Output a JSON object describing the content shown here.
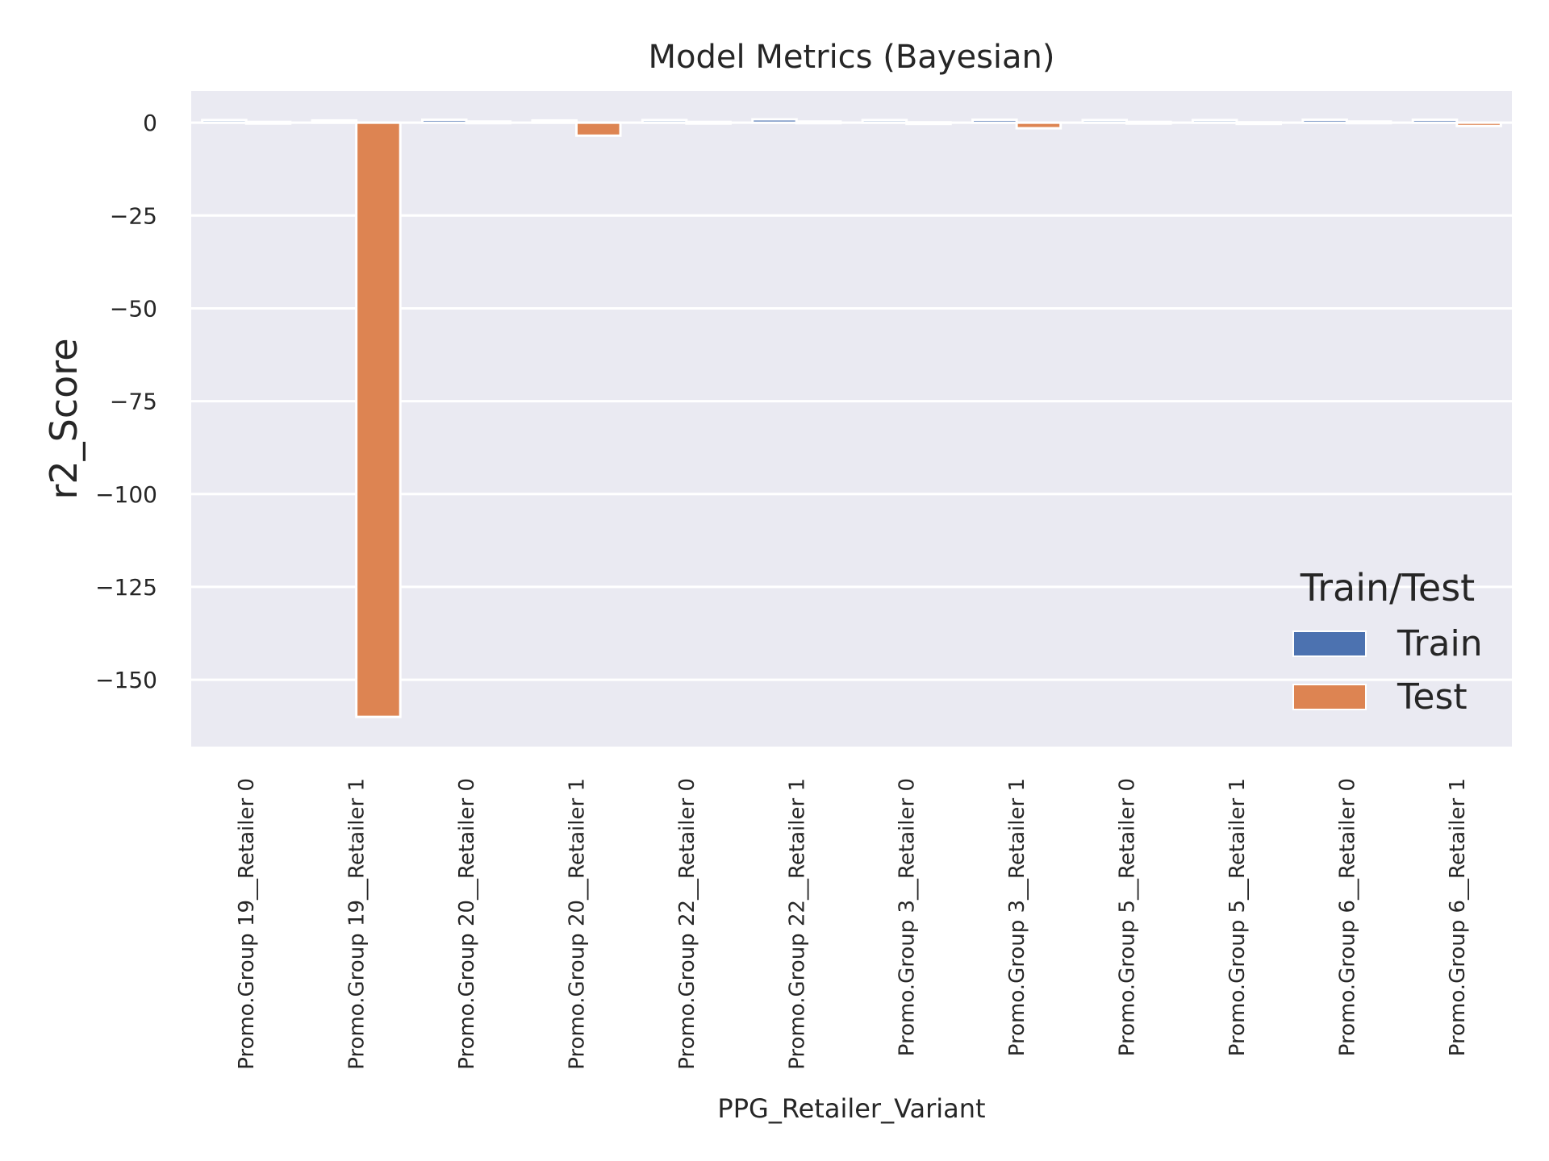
{
  "chart_data": {
    "type": "bar",
    "title": "Model Metrics (Bayesian)",
    "xlabel": "PPG_Retailer_Variant",
    "ylabel": "r2_Score",
    "ylim": [
      -168,
      8.5
    ],
    "yticks": [
      0,
      -25,
      -50,
      -75,
      -100,
      -125,
      -150
    ],
    "grid": true,
    "legend": {
      "title": "Train/Test",
      "placement": "lower-right"
    },
    "categories": [
      "Promo.Group 19__Retailer 0",
      "Promo.Group 19__Retailer 1",
      "Promo.Group 20__Retailer 0",
      "Promo.Group 20__Retailer 1",
      "Promo.Group 22__Retailer 0",
      "Promo.Group 22__Retailer 1",
      "Promo.Group 3__Retailer 0",
      "Promo.Group 3__Retailer 1",
      "Promo.Group 5__Retailer 0",
      "Promo.Group 5__Retailer 1",
      "Promo.Group 6__Retailer 0",
      "Promo.Group 6__Retailer 1"
    ],
    "series": [
      {
        "name": "Train",
        "color": "#4c72b0",
        "values": [
          0.7,
          0.6,
          0.8,
          0.6,
          0.7,
          0.9,
          0.7,
          0.8,
          0.7,
          0.7,
          0.8,
          0.8
        ]
      },
      {
        "name": "Test",
        "color": "#dd8452",
        "values": [
          0.2,
          -160.0,
          0.3,
          -3.5,
          0.2,
          0.3,
          0.1,
          -1.5,
          0.2,
          0.1,
          0.3,
          -0.9
        ]
      }
    ],
    "background_color": "#eaeaf2",
    "grid_color": "#ffffff"
  }
}
